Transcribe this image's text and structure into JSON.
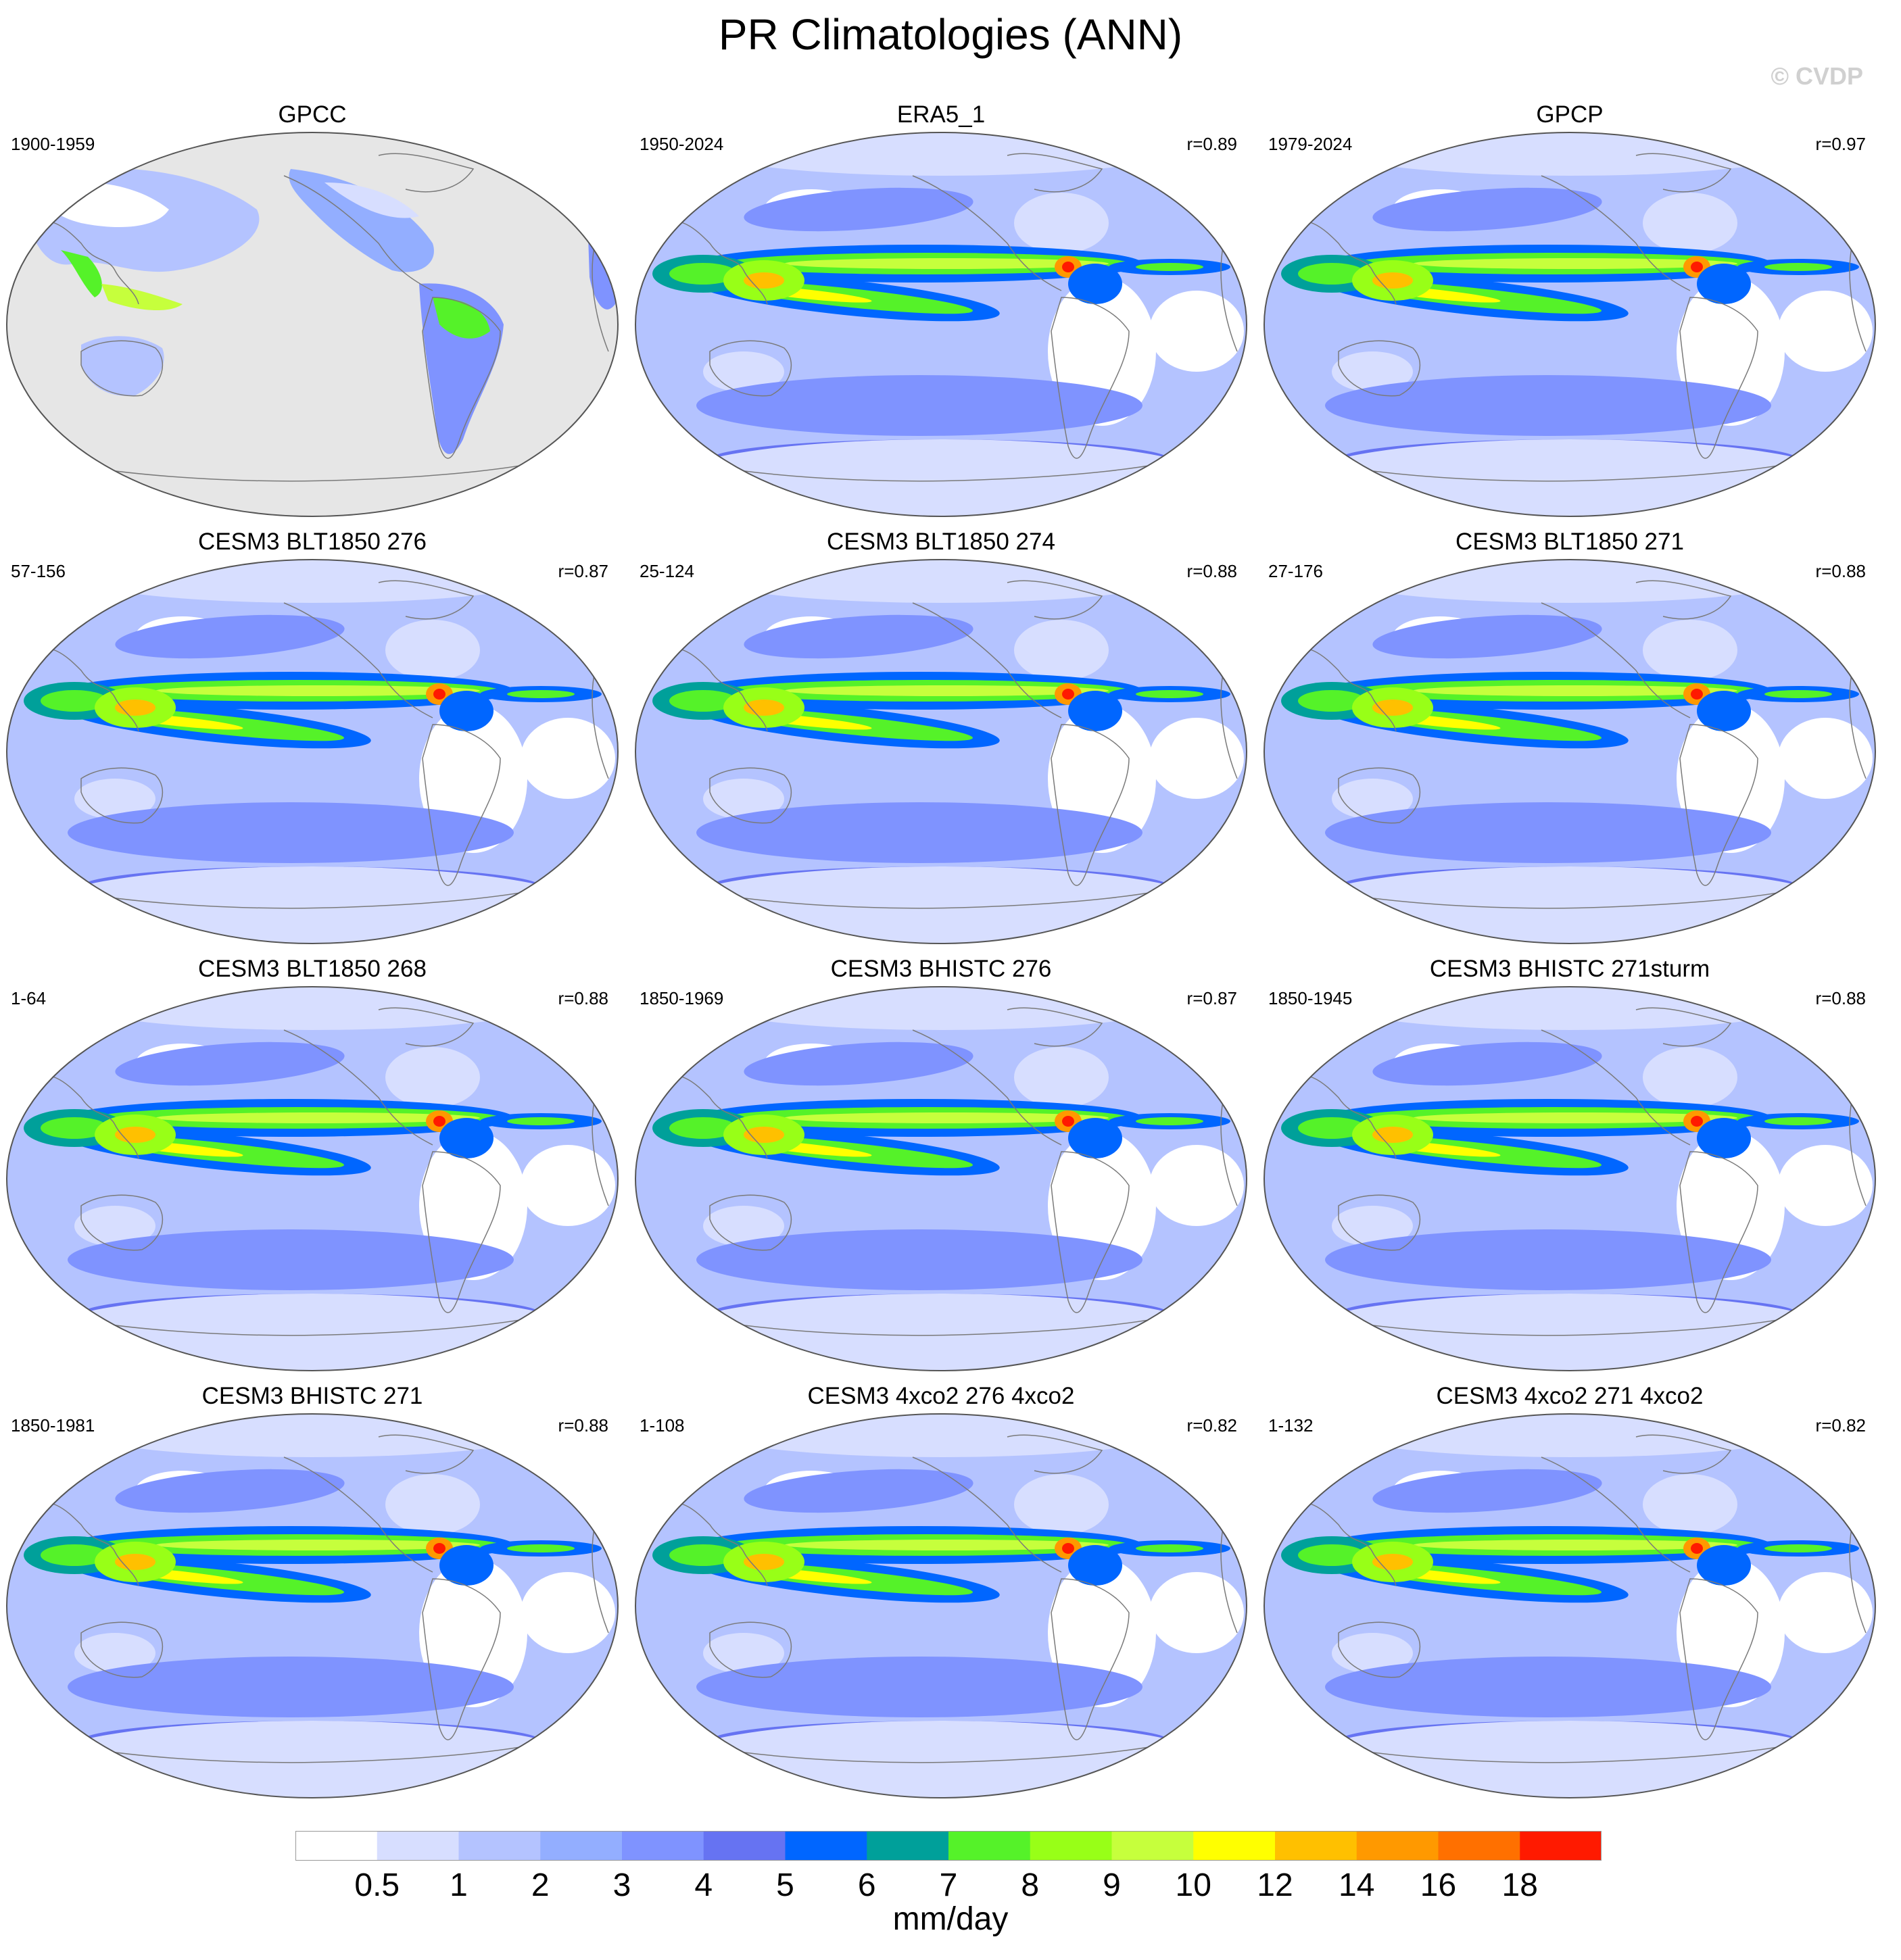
{
  "title": "PR Climatologies (ANN)",
  "watermark": "© CVDP",
  "colors": {
    "levels": [
      "#ffffff",
      "#d7deff",
      "#b4c3ff",
      "#93aeff",
      "#7f93ff",
      "#6673f2",
      "#0066ff",
      "#00a09a",
      "#55f229",
      "#98ff17",
      "#c6ff3c",
      "#ffff00",
      "#ffc000",
      "#ff9900",
      "#ff7000",
      "#ff1a00"
    ],
    "missing": "#e6e6e6",
    "coast": "#7a7a7a"
  },
  "panels": [
    {
      "title": "GPCC",
      "period": "1900-1959",
      "corr": "",
      "kind": "land"
    },
    {
      "title": "ERA5_1",
      "period": "1950-2024",
      "corr": "r=0.89",
      "kind": "obs"
    },
    {
      "title": "GPCP",
      "period": "1979-2024",
      "corr": "r=0.97",
      "kind": "obs"
    },
    {
      "title": "CESM3 BLT1850 276",
      "period": "57-156",
      "corr": "r=0.87",
      "kind": "model"
    },
    {
      "title": "CESM3 BLT1850 274",
      "period": "25-124",
      "corr": "r=0.88",
      "kind": "model"
    },
    {
      "title": "CESM3 BLT1850 271",
      "period": "27-176",
      "corr": "r=0.88",
      "kind": "model"
    },
    {
      "title": "CESM3 BLT1850 268",
      "period": "1-64",
      "corr": "r=0.88",
      "kind": "model"
    },
    {
      "title": "CESM3 BHISTC 276",
      "period": "1850-1969",
      "corr": "r=0.87",
      "kind": "model"
    },
    {
      "title": "CESM3 BHISTC 271sturm",
      "period": "1850-1945",
      "corr": "r=0.88",
      "kind": "model"
    },
    {
      "title": "CESM3 BHISTC 271",
      "period": "1850-1981",
      "corr": "r=0.88",
      "kind": "model"
    },
    {
      "title": "CESM3 4xco2 276 4xco2",
      "period": "1-108",
      "corr": "r=0.82",
      "kind": "model"
    },
    {
      "title": "CESM3 4xco2 271 4xco2",
      "period": "1-132",
      "corr": "r=0.82",
      "kind": "model"
    }
  ],
  "colorbar": {
    "ticks": [
      "0.5",
      "1",
      "2",
      "3",
      "4",
      "5",
      "6",
      "7",
      "8",
      "9",
      "10",
      "12",
      "14",
      "16",
      "18"
    ],
    "units": "mm/day"
  }
}
